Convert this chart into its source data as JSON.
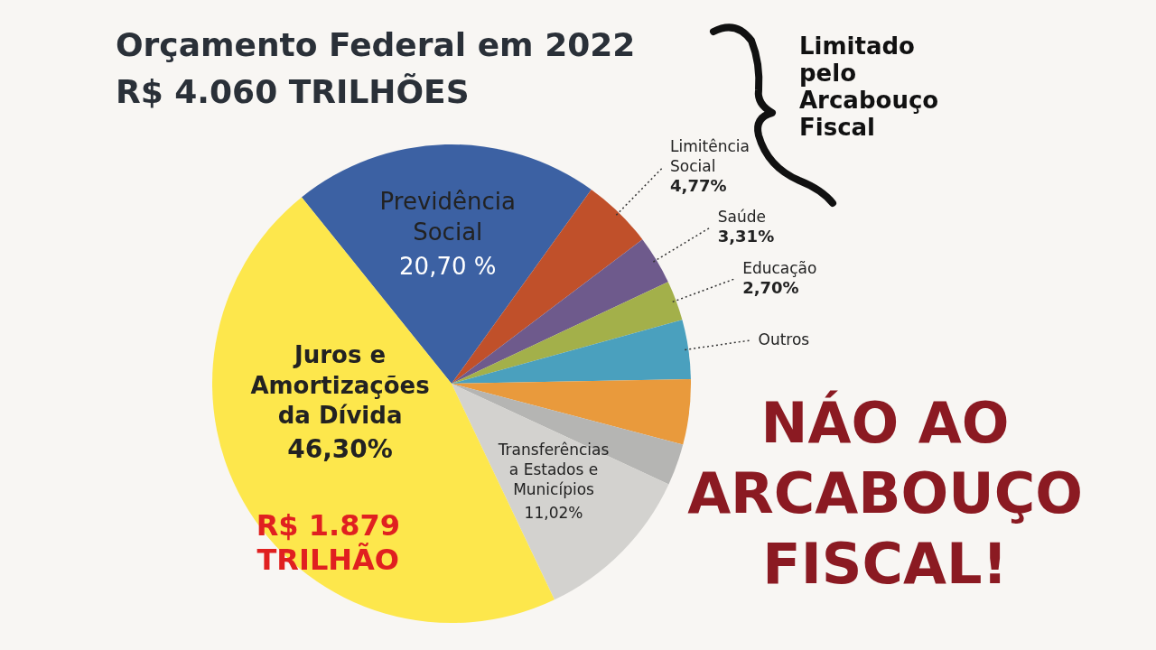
{
  "chart_data": {
    "type": "pie",
    "title": "Orçamento Federal em 2022",
    "subtitle": "R$ 4.060 TRILHÕES",
    "categories": [
      "Previdência Social",
      "Limitência Social",
      "Saúde",
      "Educação",
      "Outros",
      null,
      null,
      "Transferências a Estados e Municípios",
      "Juros e Amortizações da Dívida"
    ],
    "values": [
      20.7,
      4.77,
      3.31,
      2.7,
      4.0,
      4.4,
      2.8,
      11.02,
      46.3
    ],
    "value_labels": [
      "20,70 %",
      "4,77%",
      "3,31%",
      "2,70%",
      null,
      null,
      null,
      "11,02%",
      "46,30%"
    ],
    "colors": [
      "#3c61a3",
      "#c0502a",
      "#6e5a8c",
      "#a3b04a",
      "#4aa0be",
      "#e99a3c",
      "#b5b5b3",
      "#d3d2cf",
      "#fde74c"
    ],
    "annotations": [
      "Limitado pelo Arcabouço Fiscal",
      "NÁO AO ARCABOUÇO FISCAL!",
      "R$ 1.879 TRILHÃO"
    ]
  }
}
